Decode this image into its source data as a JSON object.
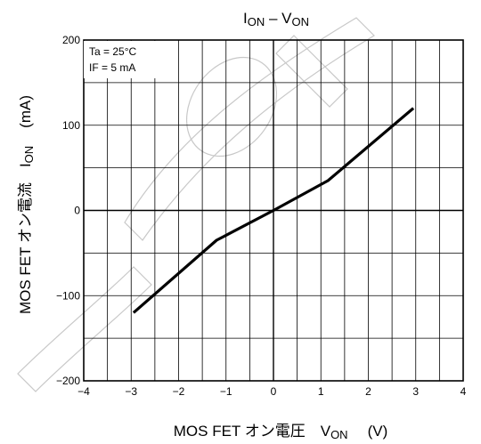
{
  "chart_data": {
    "type": "line",
    "title": {
      "main": "I",
      "sub1": "ON",
      "sep": " – V",
      "sub2": "ON"
    },
    "xlabel": {
      "main": "MOS FET オン電圧　V",
      "sub": "ON",
      "unit": "(V)"
    },
    "ylabel": {
      "main": "MOS FET オン電流　I",
      "sub": "ON",
      "unit": "(mA)"
    },
    "conditions": [
      "Ta = 25°C",
      "IF = 5 mA"
    ],
    "xlim": [
      -4,
      4
    ],
    "ylim": [
      -200,
      200
    ],
    "x_ticks": [
      -4,
      -3,
      -2,
      -1,
      0,
      1,
      2,
      3,
      4
    ],
    "x_tick_labels": [
      "−4",
      "−3",
      "−2",
      "−1",
      "0",
      "1",
      "2",
      "3",
      "4"
    ],
    "y_ticks": [
      -200,
      -100,
      0,
      100,
      200
    ],
    "y_tick_labels": [
      "−200",
      "−100",
      "0",
      "100",
      "200"
    ],
    "grid": true,
    "series": [
      {
        "color": "#000000",
        "x": [
          -2.95,
          -1.2,
          0,
          1.15,
          2.95
        ],
        "y": [
          -120,
          -35,
          0,
          35,
          120
        ]
      }
    ]
  }
}
